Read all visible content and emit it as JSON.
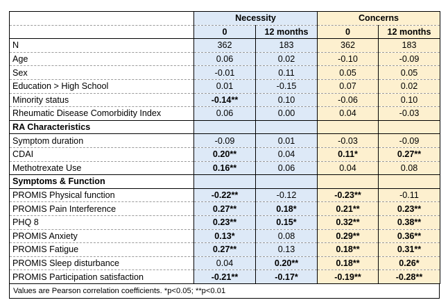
{
  "header": {
    "groups": [
      "Necessity",
      "Concerns"
    ],
    "subheaders": [
      "0",
      "12 months",
      "0",
      "12 months"
    ]
  },
  "rows": [
    {
      "label": "N",
      "vals": [
        "362",
        "183",
        "362",
        "183"
      ]
    },
    {
      "label": "Age",
      "vals": [
        "0.06",
        "0.02",
        "-0.10",
        "-0.09"
      ]
    },
    {
      "label": "Sex",
      "vals": [
        "-0.01",
        "0.11",
        "0.05",
        "0.05"
      ]
    },
    {
      "label": "Education > High School",
      "vals": [
        "0.01",
        "-0.15",
        "0.07",
        "0.02"
      ]
    },
    {
      "label": "Minority status",
      "vals": [
        "-0.14**",
        "0.10",
        "-0.06",
        "0.10"
      ]
    },
    {
      "label": "Rheumatic Disease Comorbidity Index",
      "vals": [
        "0.06",
        "0.00",
        "0.04",
        "-0.03"
      ]
    },
    {
      "section": "RA Characteristics"
    },
    {
      "label": "Symptom duration",
      "vals": [
        "-0.09",
        "0.01",
        "-0.03",
        "-0.09"
      ]
    },
    {
      "label": "CDAI",
      "vals": [
        "0.20**",
        "0.04",
        "0.11*",
        "0.27**"
      ]
    },
    {
      "label": "Methotrexate Use",
      "vals": [
        "0.16**",
        "0.06",
        "0.04",
        "0.08"
      ]
    },
    {
      "section": "Symptoms & Function"
    },
    {
      "label": "PROMIS Physical function",
      "vals": [
        "-0.22**",
        "-0.12",
        "-0.23**",
        "-0.11"
      ]
    },
    {
      "label": "PROMIS Pain Interference",
      "vals": [
        "0.27**",
        "0.18*",
        "0.21**",
        "0.23**"
      ]
    },
    {
      "label": "PHQ 8",
      "vals": [
        "0.23**",
        "0.15*",
        "0.32**",
        "0.38**"
      ]
    },
    {
      "label": "PROMIS Anxiety",
      "vals": [
        "0.13*",
        "0.08",
        "0.29**",
        "0.36**"
      ]
    },
    {
      "label": "PROMIS Fatigue",
      "vals": [
        "0.27**",
        "0.13",
        "0.18**",
        "0.31**"
      ]
    },
    {
      "label": "PROMIS Sleep disturbance",
      "vals": [
        "0.04",
        "0.20**",
        "0.18**",
        "0.26*"
      ]
    },
    {
      "label": "PROMIS Participation satisfaction",
      "vals": [
        "-0.21**",
        "-0.17*",
        "-0.19**",
        "-0.28**"
      ]
    }
  ],
  "footnote": "Values are Pearson correlation coefficients. *p<0.05; **p<0.01"
}
